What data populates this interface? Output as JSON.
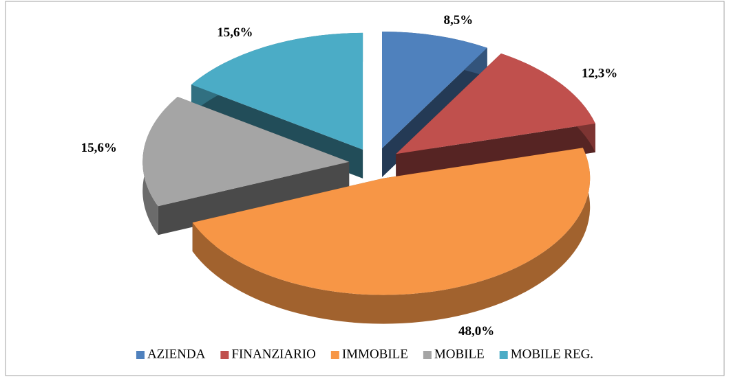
{
  "chart_data": {
    "type": "pie3d",
    "categories": [
      "AZIENDA",
      "FINANZIARIO",
      "IMMOBILE",
      "MOBILE",
      "MOBILE REG."
    ],
    "values": [
      8.5,
      12.3,
      48.0,
      15.6,
      15.6
    ],
    "value_labels": [
      "8,5%",
      "12,3%",
      "48,0%",
      "15,6%",
      "15,6%"
    ],
    "colors": [
      "#4f81bd",
      "#c0504d",
      "#f79646",
      "#a5a5a5",
      "#4bacc6"
    ],
    "legend": "bottom"
  }
}
